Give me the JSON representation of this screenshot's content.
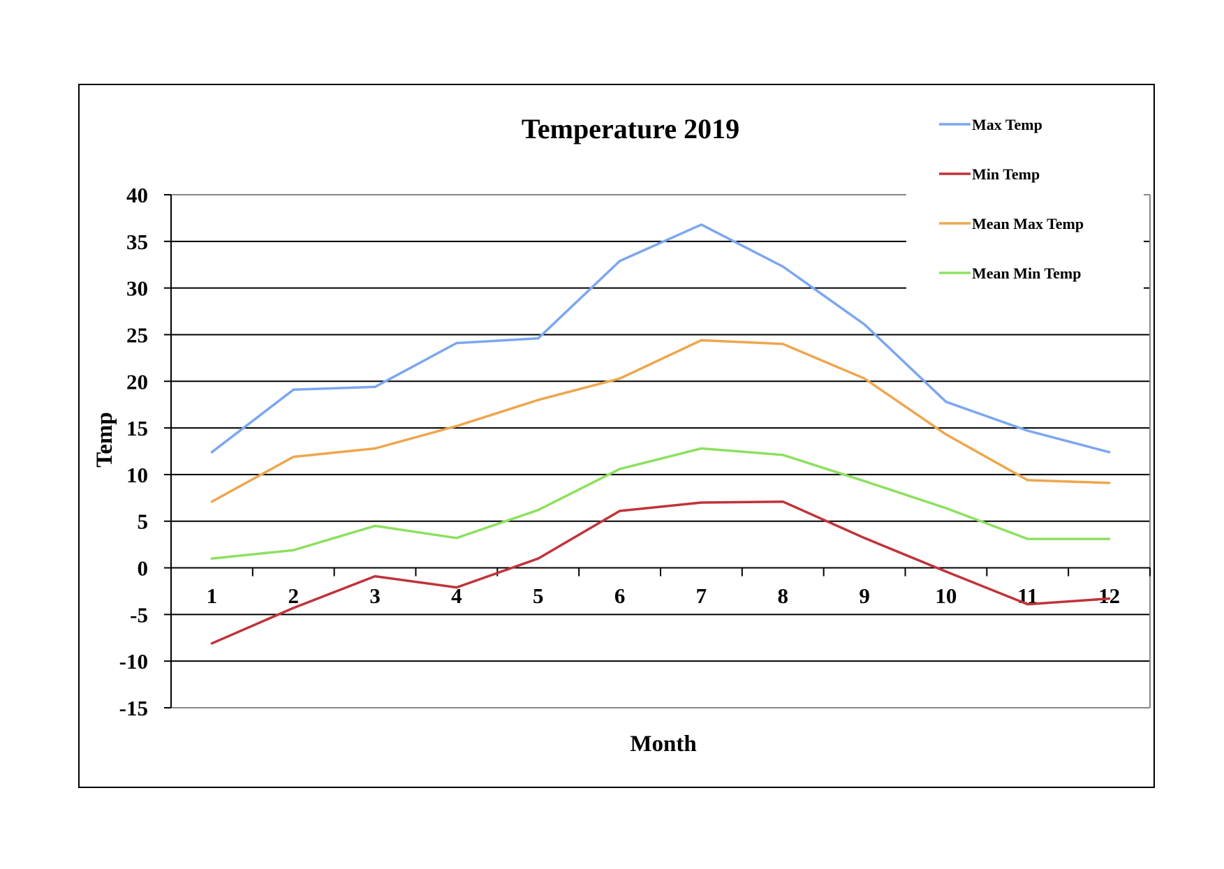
{
  "chart_data": {
    "type": "line",
    "title": "Temperature 2019",
    "xlabel": "Month",
    "ylabel": "Temp",
    "categories": [
      "1",
      "2",
      "3",
      "4",
      "5",
      "6",
      "7",
      "8",
      "9",
      "10",
      "11",
      "12"
    ],
    "ylim": [
      -15,
      40
    ],
    "yticks": [
      "40",
      "35",
      "30",
      "25",
      "20",
      "15",
      "10",
      "5",
      "0",
      "-5",
      "-10",
      "-15"
    ],
    "grid": true,
    "legend_position": "top-right",
    "series": [
      {
        "name": "Max Temp",
        "color": "#7ba7f0",
        "values": [
          12.4,
          19.1,
          19.4,
          24.1,
          24.6,
          32.9,
          36.8,
          32.3,
          26.1,
          17.8,
          14.7,
          12.4
        ]
      },
      {
        "name": "Min Temp",
        "color": "#c0333a",
        "values": [
          -8.1,
          -4.3,
          -0.9,
          -2.1,
          1.0,
          6.1,
          7.0,
          7.1,
          3.2,
          -0.4,
          -3.9,
          -3.3
        ]
      },
      {
        "name": "Mean Max Temp",
        "color": "#eea64e",
        "values": [
          7.1,
          11.9,
          12.8,
          15.2,
          18.0,
          20.3,
          24.4,
          24.0,
          20.3,
          14.3,
          9.4,
          9.1
        ]
      },
      {
        "name": "Mean Min Temp",
        "color": "#8de060",
        "values": [
          1.0,
          1.9,
          4.5,
          3.2,
          6.2,
          10.6,
          12.8,
          12.1,
          9.3,
          6.4,
          3.1,
          3.1
        ]
      }
    ]
  }
}
